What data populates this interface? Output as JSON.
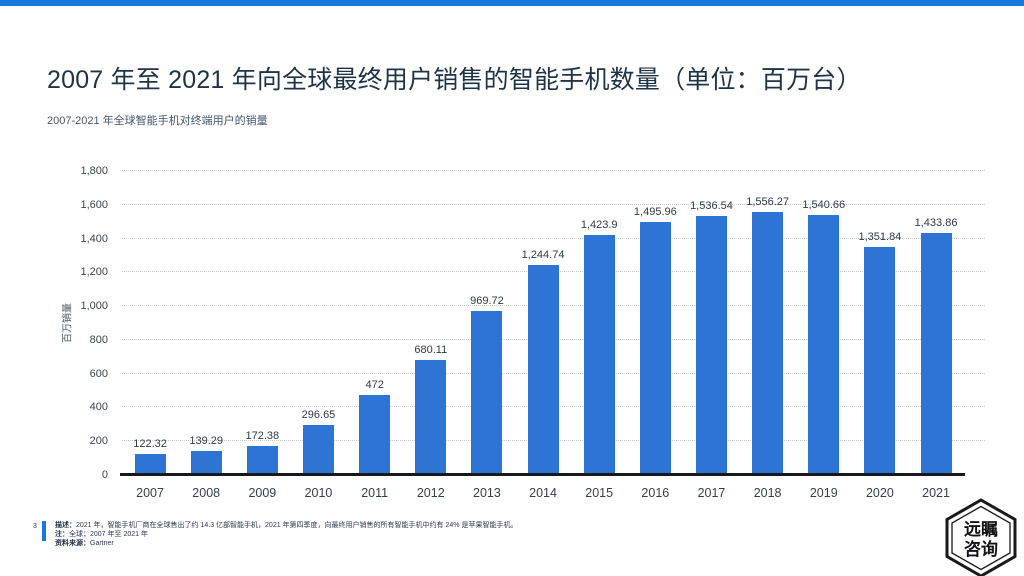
{
  "page": {
    "accent_color": "#1779db",
    "page_number": "3",
    "logo": {
      "line1": "远瞩",
      "line2": "咨询"
    }
  },
  "header": {
    "title": "2007 年至 2021 年向全球最终用户销售的智能手机数量（单位：百万台）"
  },
  "chart_data": {
    "type": "bar",
    "title": "2007-2021 年全球智能手机对终端用户的销量",
    "categories": [
      "2007",
      "2008",
      "2009",
      "2010",
      "2011",
      "2012",
      "2013",
      "2014",
      "2015",
      "2016",
      "2017",
      "2018",
      "2019",
      "2020",
      "2021"
    ],
    "values": [
      122.32,
      139.29,
      172.38,
      296.65,
      472,
      680.11,
      969.72,
      1244.74,
      1423.9,
      1495.96,
      1536.54,
      1556.27,
      1540.66,
      1351.84,
      1433.86
    ],
    "labels": [
      "122.32",
      "139.29",
      "172.38",
      "296.65",
      "472",
      "680.11",
      "969.72",
      "1,244.74",
      "1,423.9",
      "1,495.96",
      "1,536.54",
      "1,556.27",
      "1,540.66",
      "1,351.84",
      "1,433.86"
    ],
    "xlabel": "",
    "ylabel": "百万销量",
    "ylim": [
      0,
      1800
    ],
    "ytick_step": 200,
    "bar_color": "#2e74d4",
    "grid": "horizontal-dotted",
    "legend": "none"
  },
  "footer": {
    "description_label": "描述：",
    "description": "2021 年，智能手机厂商在全球售出了约 14.3 亿部智能手机，2021 年第四季度，向最终用户销售的所有智能手机中约有 24% 是苹果智能手机。",
    "note_label": "注：",
    "note": "全球；2007 年至 2021 年",
    "source_label": "资料来源：",
    "source": "Gartner"
  }
}
